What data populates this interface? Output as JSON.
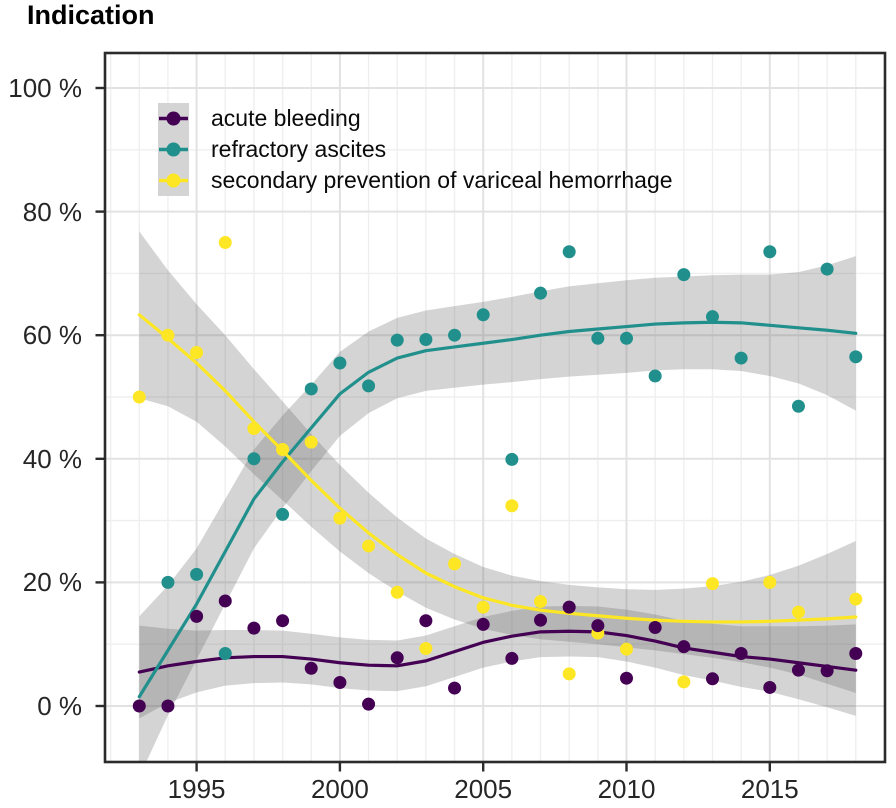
{
  "title": "Indication",
  "colors": {
    "acute_bleeding": "#440154",
    "refractory_ascites": "#21908C",
    "secondary_prevention": "#FDE725",
    "ci_band": "#666666",
    "panel_border": "#2b2b2b",
    "grid_major": "#e2e2e2",
    "grid_minor": "#efefef",
    "axis_text": "#262626",
    "legend_key_bg": "#d4d4d4"
  },
  "chart_data": {
    "type": "scatter",
    "subtype": "scatter points with loess trend lines and gray confidence bands",
    "title": "Indication",
    "xlabel": "",
    "ylabel": "",
    "grid": "major and minor, light gray on white, black panel border",
    "legend_position": "inside top-left",
    "x_range": [
      1991.8,
      2019.0
    ],
    "y_range_pct": [
      -9.1,
      105.7
    ],
    "axes": {
      "x_ticks": [
        {
          "value": 1995,
          "label": "1995"
        },
        {
          "value": 2000,
          "label": "2000"
        },
        {
          "value": 2005,
          "label": "2005"
        },
        {
          "value": 2010,
          "label": "2010"
        },
        {
          "value": 2015,
          "label": "2015"
        }
      ],
      "y_ticks": [
        {
          "value": 0,
          "label": "0 %"
        },
        {
          "value": 20,
          "label": "20 %"
        },
        {
          "value": 40,
          "label": "40 %"
        },
        {
          "value": 60,
          "label": "60 %"
        },
        {
          "value": 80,
          "label": "80 %"
        },
        {
          "value": 100,
          "label": "100 %"
        }
      ],
      "y_minor": [
        10,
        30,
        50,
        70,
        90
      ],
      "x_minor_step_years": 1
    },
    "series": [
      {
        "name": "acute bleeding",
        "color": "#440154",
        "points": [
          [
            1993,
            0
          ],
          [
            1994,
            0
          ],
          [
            1995,
            14.5
          ],
          [
            1996,
            17
          ],
          [
            1997,
            12.6
          ],
          [
            1998,
            13.8
          ],
          [
            1999,
            6.1
          ],
          [
            2000,
            3.8
          ],
          [
            2001,
            0.3
          ],
          [
            2002,
            7.8
          ],
          [
            2003,
            13.8
          ],
          [
            2004,
            2.9
          ],
          [
            2005,
            13.2
          ],
          [
            2006,
            7.7
          ],
          [
            2007,
            13.9
          ],
          [
            2008,
            16
          ],
          [
            2009,
            13
          ],
          [
            2010,
            4.5
          ],
          [
            2011,
            12.7
          ],
          [
            2012,
            9.6
          ],
          [
            2013,
            4.4
          ],
          [
            2014,
            8.5
          ],
          [
            2015,
            3
          ],
          [
            2016,
            5.8
          ],
          [
            2017,
            5.7
          ],
          [
            2018,
            8.5
          ]
        ],
        "trend": [
          [
            1993,
            5.5
          ],
          [
            1994,
            6.5
          ],
          [
            1995,
            7.2
          ],
          [
            1996,
            7.8
          ],
          [
            1997,
            8
          ],
          [
            1998,
            8
          ],
          [
            1999,
            7.6
          ],
          [
            2000,
            7
          ],
          [
            2001,
            6.6
          ],
          [
            2002,
            6.5
          ],
          [
            2003,
            7.3
          ],
          [
            2004,
            8.8
          ],
          [
            2005,
            10.3
          ],
          [
            2006,
            11.3
          ],
          [
            2007,
            12
          ],
          [
            2008,
            12.1
          ],
          [
            2009,
            12
          ],
          [
            2010,
            11.4
          ],
          [
            2011,
            10.5
          ],
          [
            2012,
            9.4
          ],
          [
            2013,
            8.7
          ],
          [
            2014,
            8
          ],
          [
            2015,
            7.6
          ],
          [
            2016,
            7
          ],
          [
            2017,
            6.4
          ],
          [
            2018,
            5.8
          ]
        ],
        "band": [
          [
            1993,
            -2,
            13
          ],
          [
            1994,
            0.5,
            12.5
          ],
          [
            1995,
            2.2,
            12.2
          ],
          [
            1996,
            3.3,
            12.3
          ],
          [
            1997,
            3.7,
            12.3
          ],
          [
            1998,
            3.8,
            12.2
          ],
          [
            1999,
            3.5,
            11.7
          ],
          [
            2000,
            2.9,
            11.1
          ],
          [
            2001,
            2.5,
            10.7
          ],
          [
            2002,
            2.4,
            10.6
          ],
          [
            2003,
            3.2,
            11.4
          ],
          [
            2004,
            4.7,
            12.9
          ],
          [
            2005,
            6.2,
            14.4
          ],
          [
            2006,
            7.2,
            15.4
          ],
          [
            2007,
            7.9,
            16.1
          ],
          [
            2008,
            8,
            16.2
          ],
          [
            2009,
            7.9,
            16.1
          ],
          [
            2010,
            7.2,
            15.6
          ],
          [
            2011,
            6.2,
            14.8
          ],
          [
            2012,
            5,
            13.8
          ],
          [
            2013,
            4.1,
            13.3
          ],
          [
            2014,
            3.1,
            12.9
          ],
          [
            2015,
            2.3,
            12.9
          ],
          [
            2016,
            1.1,
            12.9
          ],
          [
            2017,
            -0.2,
            13
          ],
          [
            2018,
            -1.6,
            13.2
          ]
        ]
      },
      {
        "name": "refractory ascites",
        "color": "#21908C",
        "points": [
          [
            1994,
            20
          ],
          [
            1995,
            21.3
          ],
          [
            1996,
            8.5
          ],
          [
            1997,
            40
          ],
          [
            1998,
            31
          ],
          [
            1999,
            51.3
          ],
          [
            2000,
            55.5
          ],
          [
            2001,
            51.8
          ],
          [
            2002,
            59.2
          ],
          [
            2003,
            59.3
          ],
          [
            2004,
            60
          ],
          [
            2005,
            63.3
          ],
          [
            2006,
            39.9
          ],
          [
            2007,
            66.8
          ],
          [
            2008,
            73.5
          ],
          [
            2009,
            59.5
          ],
          [
            2010,
            59.5
          ],
          [
            2011,
            53.4
          ],
          [
            2012,
            69.8
          ],
          [
            2013,
            63
          ],
          [
            2014,
            56.3
          ],
          [
            2015,
            73.5
          ],
          [
            2016,
            48.5
          ],
          [
            2017,
            70.7
          ],
          [
            2018,
            56.5
          ]
        ],
        "trend": [
          [
            1993,
            1.5
          ],
          [
            1994,
            9
          ],
          [
            1995,
            16.5
          ],
          [
            1996,
            25
          ],
          [
            1997,
            33.5
          ],
          [
            1998,
            39.5
          ],
          [
            1999,
            45
          ],
          [
            2000,
            50.5
          ],
          [
            2001,
            54
          ],
          [
            2002,
            56.3
          ],
          [
            2003,
            57.5
          ],
          [
            2004,
            58.1
          ],
          [
            2005,
            58.7
          ],
          [
            2006,
            59.3
          ],
          [
            2007,
            60
          ],
          [
            2008,
            60.6
          ],
          [
            2009,
            61
          ],
          [
            2010,
            61.4
          ],
          [
            2011,
            61.8
          ],
          [
            2012,
            62
          ],
          [
            2013,
            62.1
          ],
          [
            2014,
            62
          ],
          [
            2015,
            61.6
          ],
          [
            2016,
            61.2
          ],
          [
            2017,
            60.8
          ],
          [
            2018,
            60.3
          ]
        ],
        "band": [
          [
            1993,
            -11.5,
            14.5
          ],
          [
            1994,
            -1.5,
            19.5
          ],
          [
            1995,
            7.5,
            25.5
          ],
          [
            1996,
            16.5,
            33.5
          ],
          [
            1997,
            25.5,
            41.5
          ],
          [
            1998,
            32,
            47
          ],
          [
            1999,
            38,
            52
          ],
          [
            2000,
            43.7,
            57.3
          ],
          [
            2001,
            47.4,
            60.6
          ],
          [
            2002,
            49.8,
            62.8
          ],
          [
            2003,
            51,
            64
          ],
          [
            2004,
            51.5,
            64.7
          ],
          [
            2005,
            52,
            65.4
          ],
          [
            2006,
            52.4,
            66.2
          ],
          [
            2007,
            52.9,
            67.1
          ],
          [
            2008,
            53.3,
            67.9
          ],
          [
            2009,
            53.6,
            68.4
          ],
          [
            2010,
            53.9,
            68.9
          ],
          [
            2011,
            54.3,
            69.3
          ],
          [
            2012,
            54.5,
            69.5
          ],
          [
            2013,
            54.5,
            69.7
          ],
          [
            2014,
            54.2,
            69.8
          ],
          [
            2015,
            53.4,
            69.8
          ],
          [
            2016,
            52.2,
            70.2
          ],
          [
            2017,
            50.3,
            71.3
          ],
          [
            2018,
            47.8,
            72.8
          ]
        ]
      },
      {
        "name": "secondary prevention of variceal hemorrhage",
        "color": "#FDE725",
        "points": [
          [
            1993,
            50
          ],
          [
            1994,
            60
          ],
          [
            1995,
            57.2
          ],
          [
            1996,
            75
          ],
          [
            1997,
            44.9
          ],
          [
            1998,
            41.5
          ],
          [
            1999,
            42.7
          ],
          [
            2000,
            30.4
          ],
          [
            2001,
            25.9
          ],
          [
            2002,
            18.4
          ],
          [
            2003,
            9.3
          ],
          [
            2004,
            23
          ],
          [
            2005,
            16
          ],
          [
            2006,
            32.4
          ],
          [
            2007,
            16.9
          ],
          [
            2008,
            5.2
          ],
          [
            2009,
            11.8
          ],
          [
            2010,
            9.2
          ],
          [
            2012,
            3.9
          ],
          [
            2013,
            19.8
          ],
          [
            2015,
            20
          ],
          [
            2016,
            15.2
          ],
          [
            2018,
            17.3
          ]
        ],
        "trend": [
          [
            1993,
            63.3
          ],
          [
            1994,
            59.5
          ],
          [
            1995,
            55.5
          ],
          [
            1996,
            51
          ],
          [
            1997,
            46
          ],
          [
            1998,
            41.3
          ],
          [
            1999,
            36.5
          ],
          [
            2000,
            32
          ],
          [
            2001,
            28
          ],
          [
            2002,
            24.5
          ],
          [
            2003,
            21.5
          ],
          [
            2004,
            19.3
          ],
          [
            2005,
            17.5
          ],
          [
            2006,
            16.3
          ],
          [
            2007,
            15.5
          ],
          [
            2008,
            15
          ],
          [
            2009,
            14.6
          ],
          [
            2010,
            14.2
          ],
          [
            2011,
            13.9
          ],
          [
            2012,
            13.7
          ],
          [
            2013,
            13.6
          ],
          [
            2014,
            13.6
          ],
          [
            2015,
            13.7
          ],
          [
            2016,
            13.9
          ],
          [
            2017,
            14.1
          ],
          [
            2018,
            14.4
          ]
        ],
        "band": [
          [
            1993,
            49.8,
            76.8
          ],
          [
            1994,
            48.5,
            70.5
          ],
          [
            1995,
            46,
            65
          ],
          [
            1996,
            42,
            60
          ],
          [
            1997,
            37.5,
            54.5
          ],
          [
            1998,
            33.3,
            49.3
          ],
          [
            1999,
            29,
            44
          ],
          [
            2000,
            25,
            39
          ],
          [
            2001,
            21.5,
            34.5
          ],
          [
            2002,
            18.5,
            30.5
          ],
          [
            2003,
            15.9,
            27.1
          ],
          [
            2004,
            14,
            24.6
          ],
          [
            2005,
            12.5,
            22.5
          ],
          [
            2006,
            11.5,
            21.1
          ],
          [
            2007,
            10.8,
            20.2
          ],
          [
            2008,
            10.4,
            19.6
          ],
          [
            2009,
            10,
            19.2
          ],
          [
            2010,
            9.5,
            18.9
          ],
          [
            2011,
            9,
            18.8
          ],
          [
            2012,
            8.4,
            19
          ],
          [
            2013,
            7.8,
            19.4
          ],
          [
            2014,
            7.1,
            20.1
          ],
          [
            2015,
            6.2,
            21.2
          ],
          [
            2016,
            5.1,
            22.7
          ],
          [
            2017,
            3.6,
            24.6
          ],
          [
            2018,
            2.1,
            26.7
          ]
        ]
      }
    ]
  }
}
